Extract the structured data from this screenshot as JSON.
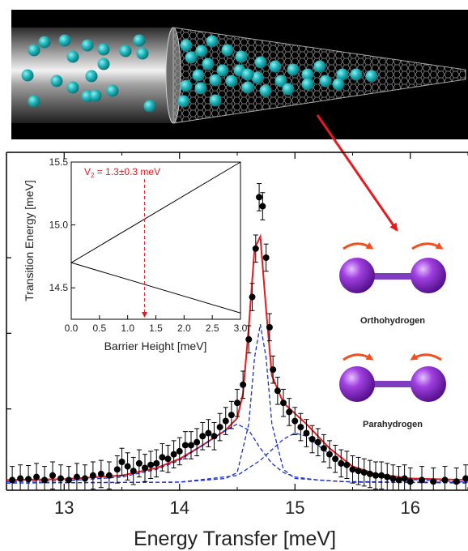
{
  "chart_data": [
    {
      "id": "main",
      "type": "scatter",
      "xlabel": "Energy Transfer [meV]",
      "ylabel": "",
      "xlim": [
        12.5,
        16.5
      ],
      "ylim": [
        0,
        1.05
      ],
      "x_ticks": [
        13,
        14,
        15,
        16
      ],
      "x_tick_labels": [
        "13",
        "14",
        "15",
        "16"
      ],
      "grid": false,
      "data_points": {
        "x": [
          12.55,
          12.62,
          12.69,
          12.76,
          12.83,
          12.9,
          12.97,
          13.04,
          13.11,
          13.18,
          13.25,
          13.32,
          13.39,
          13.46,
          13.5,
          13.55,
          13.6,
          13.65,
          13.7,
          13.75,
          13.8,
          13.85,
          13.9,
          13.95,
          14.0,
          14.05,
          14.1,
          14.15,
          14.2,
          14.25,
          14.3,
          14.35,
          14.4,
          14.45,
          14.5,
          14.55,
          14.6,
          14.63,
          14.66,
          14.69,
          14.72,
          14.75,
          14.78,
          14.81,
          14.85,
          14.9,
          14.95,
          15.0,
          15.05,
          15.1,
          15.15,
          15.2,
          15.25,
          15.3,
          15.35,
          15.4,
          15.45,
          15.5,
          15.55,
          15.6,
          15.65,
          15.7,
          15.75,
          15.8,
          15.85,
          15.9,
          15.95,
          16.0,
          16.1,
          16.2,
          16.3,
          16.4,
          16.48
        ],
        "y": [
          0.015,
          0.02,
          0.018,
          0.025,
          0.015,
          0.03,
          0.02,
          0.015,
          0.025,
          0.02,
          0.03,
          0.035,
          0.03,
          0.05,
          0.075,
          0.06,
          0.045,
          0.07,
          0.055,
          0.065,
          0.07,
          0.09,
          0.085,
          0.1,
          0.11,
          0.13,
          0.13,
          0.14,
          0.16,
          0.17,
          0.16,
          0.19,
          0.21,
          0.23,
          0.27,
          0.33,
          0.48,
          0.62,
          0.78,
          0.95,
          0.92,
          0.75,
          0.52,
          0.38,
          0.31,
          0.27,
          0.24,
          0.21,
          0.19,
          0.17,
          0.15,
          0.14,
          0.12,
          0.1,
          0.085,
          0.07,
          0.065,
          0.05,
          0.045,
          0.04,
          0.035,
          0.03,
          0.03,
          0.025,
          0.02,
          0.015,
          0.02,
          0.01,
          0.015,
          0.01,
          0.015,
          0.01,
          0.02
        ],
        "error_bar": 0.045
      },
      "series": [
        {
          "name": "",
          "style": "solid",
          "color": "#e8191f",
          "x": [
            12.5,
            13.0,
            13.5,
            13.8,
            14.0,
            14.2,
            14.3,
            14.4,
            14.5,
            14.55,
            14.6,
            14.65,
            14.7,
            14.75,
            14.8,
            14.9,
            15.0,
            15.1,
            15.2,
            15.3,
            15.5,
            15.7,
            16.0,
            16.5
          ],
          "y": [
            0.015,
            0.018,
            0.03,
            0.055,
            0.085,
            0.13,
            0.155,
            0.18,
            0.22,
            0.3,
            0.52,
            0.78,
            0.82,
            0.58,
            0.36,
            0.27,
            0.235,
            0.2,
            0.16,
            0.12,
            0.06,
            0.035,
            0.02,
            0.015
          ]
        },
        {
          "name": "",
          "style": "dashed",
          "color": "#1a2fd0",
          "x": [
            12.5,
            13.0,
            13.5,
            13.8,
            14.0,
            14.2,
            14.4,
            14.5,
            14.6,
            14.7,
            14.8,
            14.9,
            15.0,
            15.2,
            15.4,
            16.0,
            16.5
          ],
          "y": [
            0.01,
            0.012,
            0.025,
            0.05,
            0.08,
            0.13,
            0.18,
            0.2,
            0.18,
            0.12,
            0.07,
            0.04,
            0.025,
            0.015,
            0.01,
            0.008,
            0.008
          ]
        },
        {
          "name": "",
          "style": "dashed",
          "color": "#1a2fd0",
          "x": [
            12.5,
            14.0,
            14.4,
            14.5,
            14.6,
            14.65,
            14.7,
            14.75,
            14.8,
            14.9,
            15.0,
            15.5,
            16.5
          ],
          "y": [
            0.005,
            0.008,
            0.02,
            0.04,
            0.2,
            0.42,
            0.53,
            0.42,
            0.2,
            0.05,
            0.02,
            0.008,
            0.005
          ]
        },
        {
          "name": "",
          "style": "dashed",
          "color": "#1a2fd0",
          "x": [
            12.5,
            14.0,
            14.5,
            14.7,
            14.9,
            15.0,
            15.1,
            15.2,
            15.3,
            15.5,
            15.8,
            16.5
          ],
          "y": [
            0.005,
            0.008,
            0.03,
            0.08,
            0.15,
            0.17,
            0.16,
            0.13,
            0.1,
            0.05,
            0.02,
            0.008
          ]
        }
      ]
    },
    {
      "id": "inset",
      "type": "line",
      "xlabel": "Barrier Height [meV]",
      "ylabel": "Transition Energy [meV]",
      "xlim": [
        0,
        3
      ],
      "ylim": [
        14.25,
        15.5
      ],
      "x_ticks": [
        0,
        0.5,
        1,
        1.5,
        2,
        2.5,
        3
      ],
      "x_tick_labels": [
        "0.0",
        "0.5",
        "1.0",
        "1.5",
        "2.0",
        "2.5",
        "3.0"
      ],
      "y_ticks": [
        14.5,
        15.0,
        15.5
      ],
      "y_tick_labels": [
        "14.5",
        "15.0",
        "15.5"
      ],
      "series": [
        {
          "name": "",
          "x": [
            0,
            3
          ],
          "y": [
            14.7,
            15.5
          ]
        },
        {
          "name": "",
          "x": [
            0,
            3
          ],
          "y": [
            14.7,
            14.3
          ]
        }
      ],
      "annotation": {
        "text_main": "V",
        "text_sub": "2",
        "text_rest": " = 1.3±0.3 meV",
        "x": 1.3,
        "color": "#e8191f"
      }
    }
  ],
  "legend": {
    "ortho_label": "Orthohydrogen",
    "para_label": "Parahydrogen",
    "molecule_color": "#8a2be2",
    "arrow_color": "#f0501e"
  },
  "nanotube": {
    "background": "#000000",
    "molecule_color": "#1fb3b8",
    "arrow_color": "#e8191f"
  }
}
